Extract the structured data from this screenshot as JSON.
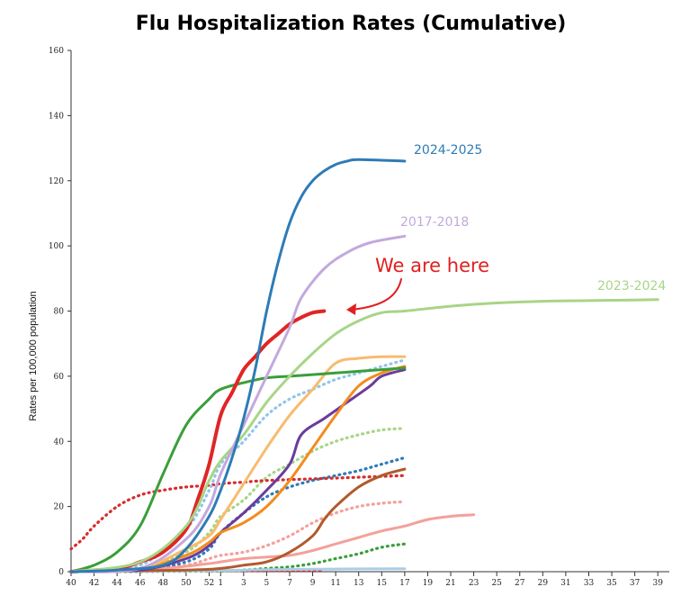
{
  "chart_data": {
    "type": "line",
    "title": "Flu Hospitalization Rates (Cumulative)",
    "xlabel": "",
    "ylabel": "Rates per 100,000 population",
    "ylim": [
      0,
      160
    ],
    "yticks": [
      0,
      20,
      40,
      60,
      80,
      100,
      120,
      140,
      160
    ],
    "xticks": [
      "40",
      "42",
      "44",
      "46",
      "48",
      "50",
      "52",
      "1",
      "3",
      "5",
      "7",
      "9",
      "11",
      "13",
      "15",
      "17",
      "19",
      "21",
      "23",
      "25",
      "27",
      "29",
      "31",
      "33",
      "35",
      "37",
      "39"
    ],
    "week_range": [
      40,
      39
    ],
    "annotation": {
      "text": "We are here",
      "color": "#e02020",
      "points_to_series": "current"
    },
    "series": [
      {
        "name": "2024-2025",
        "label": "2024-2025",
        "color": "#2e7bb6",
        "style": "solid",
        "width": 3,
        "points": [
          [
            40,
            0
          ],
          [
            44,
            0.5
          ],
          [
            48,
            2
          ],
          [
            50,
            7
          ],
          [
            52,
            17
          ],
          [
            1,
            25
          ],
          [
            2,
            35
          ],
          [
            3,
            47
          ],
          [
            4,
            62
          ],
          [
            5,
            80
          ],
          [
            6,
            95
          ],
          [
            7,
            107
          ],
          [
            8,
            115
          ],
          [
            9,
            120
          ],
          [
            10,
            123
          ],
          [
            11,
            125
          ],
          [
            12,
            126
          ],
          [
            13,
            126.5
          ],
          [
            17,
            126
          ]
        ]
      },
      {
        "name": "2017-2018",
        "label": "2017-2018",
        "color": "#c3a9dc",
        "style": "solid",
        "width": 3,
        "points": [
          [
            40,
            0
          ],
          [
            46,
            1
          ],
          [
            50,
            10
          ],
          [
            52,
            20
          ],
          [
            1,
            30
          ],
          [
            3,
            45
          ],
          [
            5,
            60
          ],
          [
            7,
            75
          ],
          [
            8,
            84
          ],
          [
            10,
            93
          ],
          [
            12,
            98
          ],
          [
            14,
            101
          ],
          [
            17,
            103
          ]
        ]
      },
      {
        "name": "2023-2024",
        "label": "2023-2024",
        "color": "#a8d586",
        "style": "solid",
        "width": 3,
        "points": [
          [
            40,
            0
          ],
          [
            46,
            3
          ],
          [
            50,
            14
          ],
          [
            52,
            28
          ],
          [
            1,
            34
          ],
          [
            3,
            42
          ],
          [
            5,
            52
          ],
          [
            7,
            60
          ],
          [
            9,
            67
          ],
          [
            11,
            73
          ],
          [
            13,
            77
          ],
          [
            15,
            79.5
          ],
          [
            17,
            80
          ],
          [
            21,
            81.5
          ],
          [
            25,
            82.5
          ],
          [
            29,
            83
          ],
          [
            33,
            83.2
          ],
          [
            37,
            83.4
          ],
          [
            39,
            83.5
          ]
        ]
      },
      {
        "name": "current",
        "label": "",
        "color": "#e02525",
        "style": "solid",
        "width": 4,
        "points": [
          [
            40,
            0
          ],
          [
            44,
            1
          ],
          [
            46,
            3
          ],
          [
            48,
            6
          ],
          [
            50,
            13
          ],
          [
            51,
            22
          ],
          [
            52,
            33
          ],
          [
            1,
            48
          ],
          [
            2,
            55
          ],
          [
            3,
            62
          ],
          [
            4,
            66
          ],
          [
            5,
            70
          ],
          [
            6,
            73
          ],
          [
            7,
            76
          ],
          [
            8,
            78
          ],
          [
            9,
            79.5
          ],
          [
            10,
            80
          ]
        ]
      },
      {
        "name": "2009-2010",
        "label": "",
        "color": "#3a9e3a",
        "style": "solid",
        "width": 3,
        "points": [
          [
            40,
            0
          ],
          [
            42,
            2
          ],
          [
            44,
            6
          ],
          [
            46,
            14
          ],
          [
            48,
            30
          ],
          [
            50,
            45
          ],
          [
            52,
            53
          ],
          [
            1,
            56
          ],
          [
            3,
            58
          ],
          [
            5,
            59.5
          ],
          [
            7,
            60
          ],
          [
            9,
            60.5
          ],
          [
            11,
            61
          ],
          [
            13,
            61.5
          ],
          [
            15,
            62
          ],
          [
            17,
            62.5
          ]
        ]
      },
      {
        "name": "orange-light",
        "label": "",
        "color": "#f8bb6d",
        "style": "solid",
        "width": 3,
        "points": [
          [
            40,
            0
          ],
          [
            46,
            1
          ],
          [
            50,
            7
          ],
          [
            52,
            11
          ],
          [
            1,
            16
          ],
          [
            3,
            27
          ],
          [
            5,
            38
          ],
          [
            7,
            48
          ],
          [
            9,
            56
          ],
          [
            11,
            64
          ],
          [
            13,
            65.5
          ],
          [
            15,
            66
          ],
          [
            17,
            66
          ]
        ]
      },
      {
        "name": "orange",
        "label": "",
        "color": "#f28c1e",
        "style": "solid",
        "width": 3,
        "points": [
          [
            40,
            0
          ],
          [
            46,
            1
          ],
          [
            50,
            5
          ],
          [
            52,
            9
          ],
          [
            1,
            12
          ],
          [
            3,
            15
          ],
          [
            5,
            20
          ],
          [
            7,
            28
          ],
          [
            9,
            38
          ],
          [
            11,
            48
          ],
          [
            13,
            57
          ],
          [
            15,
            61
          ],
          [
            17,
            63
          ]
        ]
      },
      {
        "name": "purple",
        "label": "",
        "color": "#6a3c9b",
        "style": "solid",
        "width": 3,
        "points": [
          [
            40,
            0
          ],
          [
            46,
            0.5
          ],
          [
            50,
            4
          ],
          [
            52,
            8
          ],
          [
            1,
            12
          ],
          [
            3,
            18
          ],
          [
            5,
            25
          ],
          [
            7,
            33
          ],
          [
            8,
            42
          ],
          [
            10,
            47
          ],
          [
            12,
            52
          ],
          [
            14,
            57
          ],
          [
            15,
            60
          ],
          [
            17,
            62
          ]
        ]
      },
      {
        "name": "brown",
        "label": "",
        "color": "#b15a2c",
        "style": "solid",
        "width": 3,
        "points": [
          [
            40,
            0
          ],
          [
            50,
            0.5
          ],
          [
            1,
            1
          ],
          [
            3,
            2
          ],
          [
            5,
            3
          ],
          [
            7,
            6
          ],
          [
            9,
            11
          ],
          [
            10,
            16
          ],
          [
            11,
            20
          ],
          [
            13,
            26
          ],
          [
            15,
            29.5
          ],
          [
            17,
            31.5
          ]
        ]
      },
      {
        "name": "salmon",
        "label": "",
        "color": "#f4a09a",
        "style": "solid",
        "width": 3,
        "points": [
          [
            40,
            0
          ],
          [
            44,
            0.5
          ],
          [
            48,
            1
          ],
          [
            52,
            2.5
          ],
          [
            1,
            3
          ],
          [
            3,
            4
          ],
          [
            5,
            4.5
          ],
          [
            7,
            5
          ],
          [
            9,
            6.5
          ],
          [
            11,
            8.5
          ],
          [
            13,
            10.5
          ],
          [
            15,
            12.5
          ],
          [
            17,
            14
          ],
          [
            19,
            16
          ],
          [
            21,
            17
          ],
          [
            23,
            17.5
          ]
        ]
      },
      {
        "name": "light-blue-faint",
        "label": "",
        "color": "#aacde6",
        "style": "solid",
        "width": 3,
        "points": [
          [
            40,
            0
          ],
          [
            52,
            0.3
          ],
          [
            5,
            0.6
          ],
          [
            11,
            0.8
          ],
          [
            17,
            0.9
          ]
        ]
      },
      {
        "name": "dotted-light-blue",
        "label": "",
        "color": "#92c5e8",
        "style": "dotted",
        "width": 3,
        "points": [
          [
            40,
            0
          ],
          [
            46,
            2
          ],
          [
            50,
            13
          ],
          [
            52,
            25
          ],
          [
            1,
            33
          ],
          [
            3,
            40
          ],
          [
            5,
            48
          ],
          [
            7,
            53
          ],
          [
            9,
            56
          ],
          [
            11,
            59
          ],
          [
            13,
            61
          ],
          [
            15,
            63
          ],
          [
            17,
            65
          ]
        ]
      },
      {
        "name": "dotted-red",
        "label": "",
        "color": "#d62c2c",
        "style": "dotted",
        "width": 3,
        "points": [
          [
            40,
            7
          ],
          [
            41,
            10
          ],
          [
            42,
            14
          ],
          [
            44,
            20
          ],
          [
            46,
            23.5
          ],
          [
            48,
            25
          ],
          [
            50,
            26
          ],
          [
            52,
            26.5
          ],
          [
            1,
            27
          ],
          [
            3,
            27.5
          ],
          [
            5,
            28
          ],
          [
            9,
            28.5
          ],
          [
            13,
            29
          ],
          [
            17,
            29.5
          ]
        ]
      },
      {
        "name": "dotted-light-green",
        "label": "",
        "color": "#a8d586",
        "style": "dotted",
        "width": 3,
        "points": [
          [
            40,
            0
          ],
          [
            46,
            1
          ],
          [
            50,
            6
          ],
          [
            52,
            12
          ],
          [
            1,
            17
          ],
          [
            3,
            22
          ],
          [
            5,
            29
          ],
          [
            7,
            33
          ],
          [
            9,
            37
          ],
          [
            11,
            40
          ],
          [
            13,
            42
          ],
          [
            15,
            43.5
          ],
          [
            17,
            44
          ]
        ]
      },
      {
        "name": "dotted-blue",
        "label": "",
        "color": "#2e7bb6",
        "style": "dotted",
        "width": 3,
        "points": [
          [
            40,
            0
          ],
          [
            46,
            0.5
          ],
          [
            50,
            3
          ],
          [
            52,
            7
          ],
          [
            1,
            12
          ],
          [
            3,
            18
          ],
          [
            5,
            23
          ],
          [
            7,
            26
          ],
          [
            9,
            28
          ],
          [
            11,
            29.5
          ],
          [
            13,
            31
          ],
          [
            15,
            33
          ],
          [
            17,
            35
          ]
        ]
      },
      {
        "name": "dotted-pink",
        "label": "",
        "color": "#f4a09a",
        "style": "dotted",
        "width": 3,
        "points": [
          [
            40,
            0
          ],
          [
            46,
            0.5
          ],
          [
            50,
            2
          ],
          [
            52,
            4
          ],
          [
            1,
            5
          ],
          [
            3,
            6
          ],
          [
            5,
            8
          ],
          [
            7,
            11
          ],
          [
            9,
            15
          ],
          [
            11,
            18
          ],
          [
            13,
            20
          ],
          [
            15,
            21
          ],
          [
            17,
            21.5
          ]
        ]
      },
      {
        "name": "dotted-green",
        "label": "",
        "color": "#3a9e3a",
        "style": "dotted",
        "width": 3,
        "points": [
          [
            40,
            0
          ],
          [
            52,
            0.2
          ],
          [
            3,
            0.5
          ],
          [
            5,
            1
          ],
          [
            7,
            1.5
          ],
          [
            9,
            2.5
          ],
          [
            11,
            4
          ],
          [
            13,
            5.5
          ],
          [
            15,
            7.5
          ],
          [
            17,
            8.5
          ]
        ]
      },
      {
        "name": "dotted-red-small",
        "label": "",
        "color": "#e02525",
        "style": "dotted",
        "width": 3,
        "points": [
          [
            40,
            0
          ],
          [
            52,
            0.2
          ],
          [
            3,
            0.3
          ],
          [
            9,
            0.4
          ],
          [
            10,
            0.5
          ]
        ]
      }
    ]
  }
}
